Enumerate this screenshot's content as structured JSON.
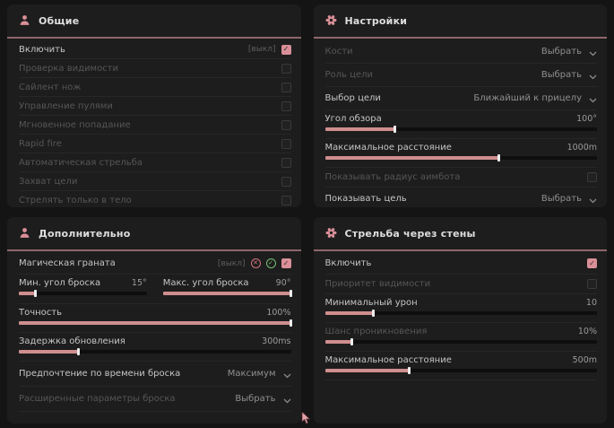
{
  "colors": {
    "accent": "#d98f98",
    "slider_fill": "#cf8e8e",
    "green_badge": "#74c274",
    "red_badge": "#d4737f",
    "panel_bg": "#1d1d1d",
    "page_bg": "#141414",
    "header_divider": "#8d666c"
  },
  "icons": {
    "general_header": "person-icon",
    "settings_header": "gear-icon",
    "additional_header": "person-icon",
    "wallbang_header": "gear-icon",
    "cursor": "mouse-cursor"
  },
  "panels": {
    "general": {
      "title": "Общие",
      "rows": [
        {
          "label": "Включить",
          "keybind": "[выкл]",
          "checked": true
        },
        {
          "label": "Проверка видимости",
          "checked": false
        },
        {
          "label": "Сайлент нож",
          "checked": false
        },
        {
          "label": "Управление пулями",
          "checked": false
        },
        {
          "label": "Мгновенное попадание",
          "checked": false
        },
        {
          "label": "Rapid fire",
          "checked": false
        },
        {
          "label": "Автоматическая стрельба",
          "checked": false
        },
        {
          "label": "Захват цели",
          "checked": false
        },
        {
          "label": "Стрелять только в тело",
          "checked": false
        }
      ]
    },
    "settings": {
      "title": "Настройки",
      "rows": [
        {
          "label": "Кости",
          "value": "Выбрать"
        },
        {
          "label": "Роль цели",
          "value": "Выбрать"
        },
        {
          "label": "Выбор цели",
          "value": "Ближайший к прицелу"
        },
        {
          "label": "Угол обзора",
          "value": "100°",
          "fill": 26
        },
        {
          "label": "Максимальное расстояние",
          "value": "1000m",
          "fill": 64
        },
        {
          "label": "Показывать радиус аимбота",
          "checked": false
        },
        {
          "label": "Показывать цель",
          "value": "Выбрать"
        }
      ]
    },
    "additional": {
      "title": "Дополнительно",
      "rows": [
        {
          "label": "Магическая граната",
          "keybind": "[выкл]",
          "checked": true
        },
        {
          "label": "Мин. угол броска",
          "value": "15°",
          "fill": 13
        },
        {
          "label": "Макс. угол броска",
          "value": "90°",
          "fill": 100
        },
        {
          "label": "Точность",
          "value": "100%",
          "fill": 100
        },
        {
          "label": "Задержка обновления",
          "value": "300ms",
          "fill": 22
        },
        {
          "label": "Предпочтение по времени броска",
          "value": "Максимум"
        },
        {
          "label": "Расширенные параметры броска",
          "value": "Выбрать"
        }
      ]
    },
    "wallbang": {
      "title": "Стрельба через стены",
      "rows": [
        {
          "label": "Включить",
          "checked": true
        },
        {
          "label": "Приоритет видимости",
          "checked": false
        },
        {
          "label": "Минимальный урон",
          "value": "10",
          "fill": 18
        },
        {
          "label": "Шанс проникновения",
          "value": "10%",
          "fill": 10
        },
        {
          "label": "Максимальное расстояние",
          "value": "500m",
          "fill": 31
        }
      ]
    }
  }
}
